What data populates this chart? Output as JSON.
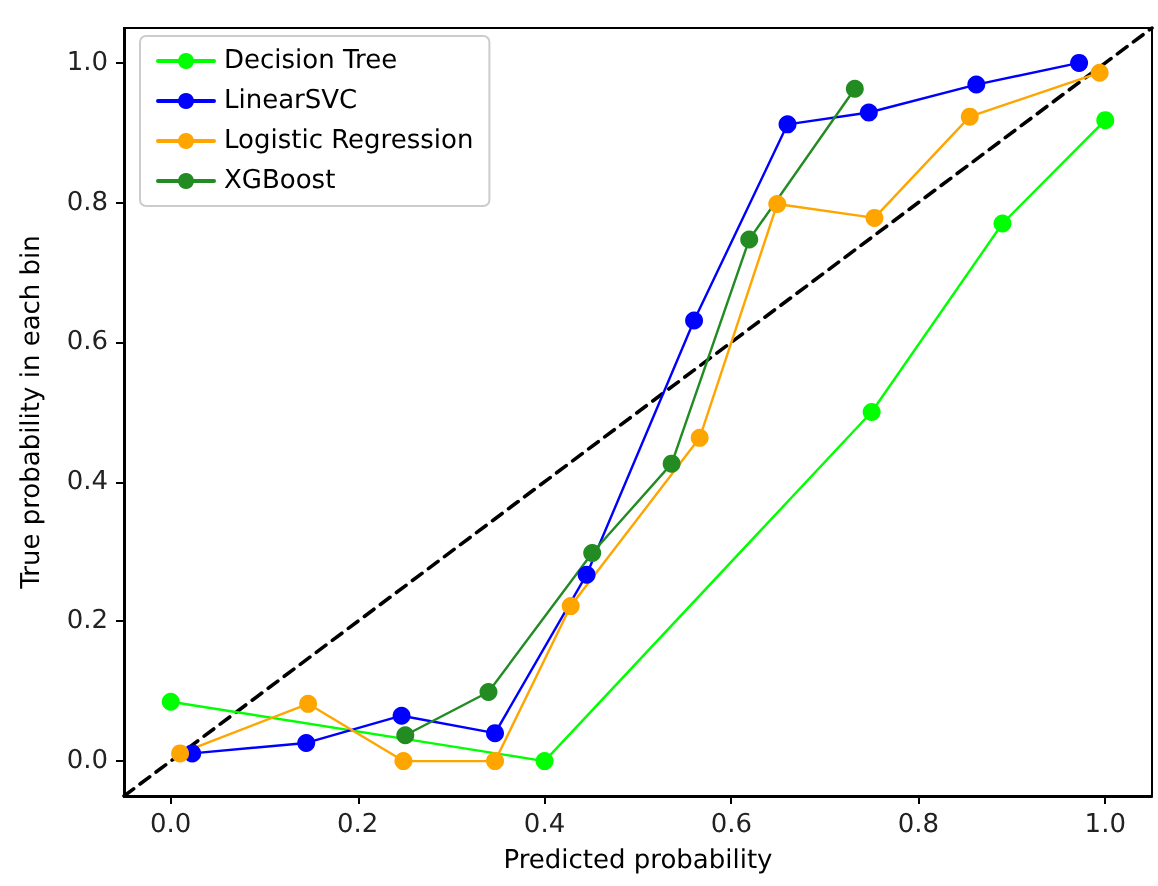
{
  "chart_data": {
    "type": "line",
    "xlabel": "Predicted probability",
    "ylabel": "True probability in each bin",
    "xlim": [
      -0.05,
      1.05
    ],
    "ylim": [
      -0.05,
      1.05
    ],
    "xticks": [
      {
        "value": 0,
        "label": "0.0"
      },
      {
        "value": 0.2,
        "label": "0.2"
      },
      {
        "value": 0.4,
        "label": "0.4"
      },
      {
        "value": 0.6,
        "label": "0.6"
      },
      {
        "value": 0.8,
        "label": "0.8"
      },
      {
        "value": 1,
        "label": "1.0"
      }
    ],
    "yticks": [
      {
        "value": 0,
        "label": "0.0"
      },
      {
        "value": 0.2,
        "label": "0.2"
      },
      {
        "value": 0.4,
        "label": "0.4"
      },
      {
        "value": 0.6,
        "label": "0.6"
      },
      {
        "value": 0.8,
        "label": "0.8"
      },
      {
        "value": 1,
        "label": "1.0"
      }
    ],
    "grid": false,
    "legend": "top left",
    "marker": "circle",
    "line_style": "solid",
    "series": [
      {
        "name": "Decision Tree",
        "color": "#00ff00",
        "x": [
          0.0,
          0.4,
          0.75,
          0.89,
          1.0
        ],
        "values": [
          0.085,
          0.0,
          0.5,
          0.77,
          0.918
        ]
      },
      {
        "name": "LinearSVC",
        "color": "#0000ff",
        "x": [
          0.023,
          0.145,
          0.247,
          0.347,
          0.445,
          0.56,
          0.66,
          0.747,
          0.862,
          0.972
        ],
        "values": [
          0.011,
          0.026,
          0.065,
          0.04,
          0.267,
          0.631,
          0.912,
          0.929,
          0.969,
          1.0
        ]
      },
      {
        "name": "Logistic Regression",
        "color": "#ffa500",
        "x": [
          0.01,
          0.147,
          0.249,
          0.347,
          0.428,
          0.566,
          0.649,
          0.753,
          0.855,
          0.994
        ],
        "values": [
          0.011,
          0.082,
          0.0,
          0.0,
          0.222,
          0.463,
          0.798,
          0.778,
          0.923,
          0.986
        ]
      },
      {
        "name": "XGBoost",
        "color": "#228b22",
        "x": [
          0.251,
          0.34,
          0.451,
          0.536,
          0.619,
          0.732
        ],
        "values": [
          0.037,
          0.099,
          0.298,
          0.426,
          0.747,
          0.963
        ]
      },
      {
        "color": "#000000",
        "line_style": "dashed",
        "marker": "none",
        "x": [
          -0.05,
          1.05
        ],
        "values": [
          -0.05,
          1.05
        ]
      }
    ]
  }
}
